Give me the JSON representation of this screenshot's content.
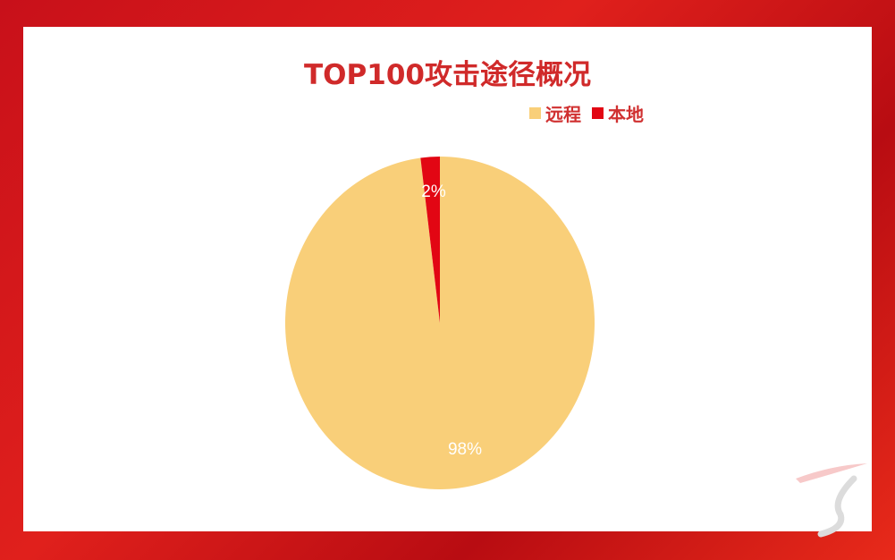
{
  "chart_data": {
    "type": "pie",
    "title": "TOP100攻击途径概况",
    "categories": [
      "远程",
      "本地"
    ],
    "values": [
      98,
      2
    ],
    "labels": [
      "98%",
      "2%"
    ],
    "colors": [
      "#f9cf79",
      "#e20613"
    ],
    "legend_position": "top-right"
  },
  "colors": {
    "frame": "#d8141a",
    "title": "#d02a2a"
  }
}
